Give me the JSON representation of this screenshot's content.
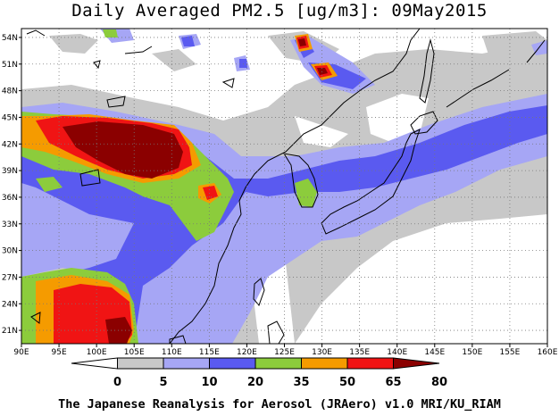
{
  "title": "Daily Averaged PM2.5 [ug/m3]: 09May2015",
  "credit": "The Japanese Reanalysis for Aerosol (JRAero) v1.0 MRI/KU_RIAM",
  "map": {
    "lon_range": [
      90,
      160
    ],
    "lat_range": [
      19.5,
      55
    ],
    "lon_ticks": [
      "90E",
      "95E",
      "100E",
      "105E",
      "110E",
      "115E",
      "120E",
      "125E",
      "130E",
      "135E",
      "140E",
      "145E",
      "150E",
      "155E",
      "160E"
    ],
    "lat_ticks": [
      "54N",
      "51N",
      "48N",
      "45N",
      "42N",
      "39N",
      "36N",
      "33N",
      "30N",
      "27N",
      "24N",
      "21N"
    ],
    "gridlines": "dotted"
  },
  "colorbar": {
    "labels": [
      "0",
      "5",
      "10",
      "20",
      "35",
      "50",
      "65",
      "80"
    ],
    "colors": [
      "#ffffff",
      "#c8c8c8",
      "#a6a6f5",
      "#5a5af0",
      "#8ccc3c",
      "#f59b00",
      "#f01414",
      "#8b0000"
    ]
  }
}
